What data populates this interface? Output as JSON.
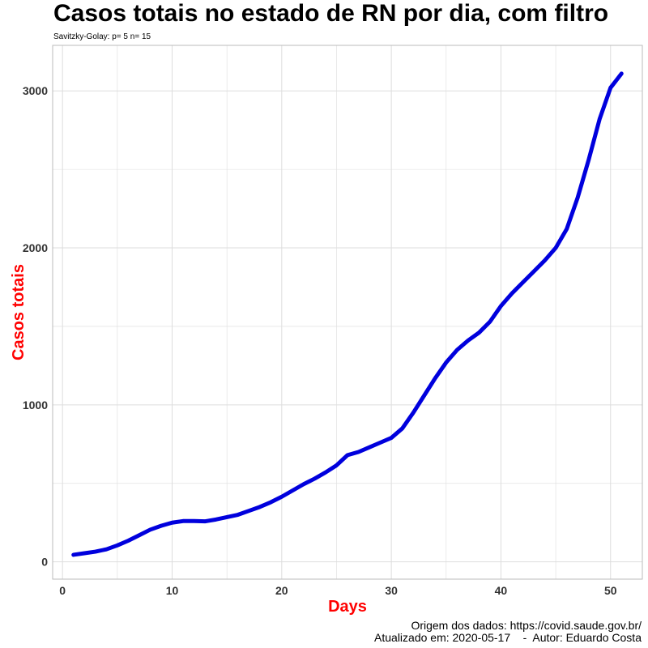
{
  "title": "Casos totais no estado de RN por dia, com filtro",
  "subtitle": "Savitzky-Golay: p= 5 n= 15",
  "caption": {
    "line1": "Origem dos dados: https://covid.saude.gov.br/",
    "line2": "Atualizado em: 2020-05-17    -  Autor: Eduardo Costa"
  },
  "colors": {
    "line": "#0000DD",
    "axis_title": "#FF0000",
    "grid": "#DDDDDD",
    "panel_border": "#BBBBBB"
  },
  "chart_data": {
    "type": "line",
    "title": "Casos totais no estado de RN por dia, com filtro",
    "subtitle": "Savitzky-Golay: p= 5 n= 15",
    "xlabel": "Days",
    "ylabel": "Casos totais",
    "xlim": [
      -0.9,
      52.9
    ],
    "ylim": [
      -110,
      3290
    ],
    "xticks": [
      0,
      10,
      20,
      30,
      40,
      50
    ],
    "yticks": [
      0,
      1000,
      2000,
      3000
    ],
    "grid": true,
    "legend": "none",
    "x": [
      1,
      2,
      3,
      4,
      5,
      6,
      7,
      8,
      9,
      10,
      11,
      12,
      13,
      14,
      15,
      16,
      17,
      18,
      19,
      20,
      21,
      22,
      23,
      24,
      25,
      26,
      27,
      28,
      29,
      30,
      31,
      32,
      33,
      34,
      35,
      36,
      37,
      38,
      39,
      40,
      41,
      42,
      43,
      44,
      45,
      46,
      47,
      48,
      49,
      50,
      51
    ],
    "y": [
      45,
      55,
      65,
      80,
      105,
      135,
      170,
      205,
      230,
      250,
      260,
      260,
      258,
      270,
      285,
      300,
      325,
      350,
      380,
      415,
      455,
      495,
      530,
      570,
      615,
      680,
      700,
      730,
      760,
      790,
      850,
      950,
      1060,
      1170,
      1270,
      1350,
      1410,
      1460,
      1530,
      1630,
      1710,
      1780,
      1850,
      1920,
      2000,
      2120,
      2320,
      2560,
      2820,
      3020,
      3110
    ]
  }
}
